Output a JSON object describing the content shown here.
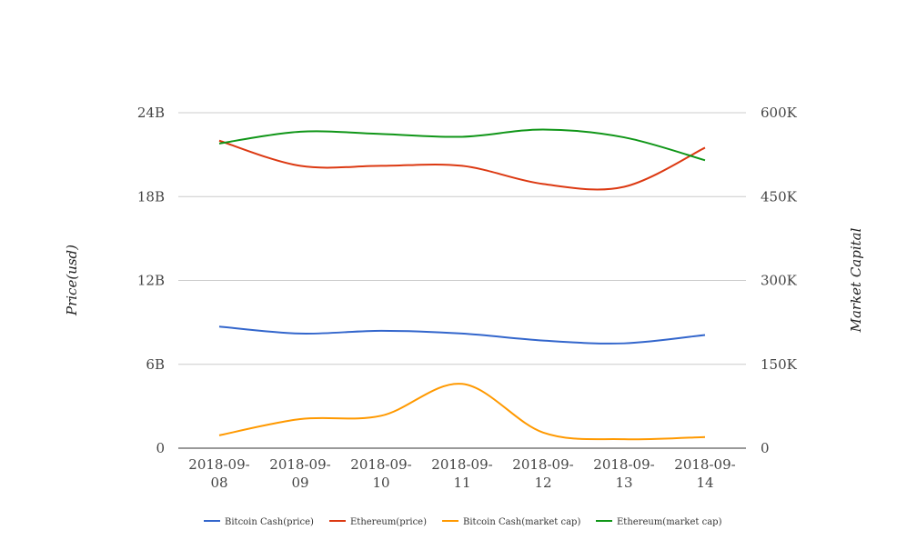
{
  "chart_data": {
    "type": "line",
    "categories": [
      "2018-09-08",
      "2018-09-09",
      "2018-09-10",
      "2018-09-11",
      "2018-09-12",
      "2018-09-13",
      "2018-09-14"
    ],
    "y_left": {
      "label": "Price(usd)",
      "range": [
        0,
        24000000000
      ],
      "ticks": [
        0,
        6000000000,
        12000000000,
        18000000000,
        24000000000
      ],
      "tick_labels": [
        "0",
        "6B",
        "12B",
        "18B",
        "24B"
      ]
    },
    "y_right": {
      "label": "Market Capital",
      "range": [
        0,
        600000
      ],
      "ticks": [
        0,
        150000,
        300000,
        450000,
        600000
      ],
      "tick_labels": [
        "0",
        "150K",
        "300K",
        "450K",
        "600K"
      ]
    },
    "grid": true,
    "legend_position": "bottom",
    "series": [
      {
        "name": "Bitcoin Cash(price)",
        "axis": "left",
        "color": "#3366cc",
        "values": [
          8700000000,
          8200000000,
          8400000000,
          8200000000,
          7700000000,
          7500000000,
          8100000000
        ]
      },
      {
        "name": "Ethereum(price)",
        "axis": "left",
        "color": "#dc3912",
        "values": [
          22000000000,
          20200000000,
          20200000000,
          20200000000,
          18900000000,
          18700000000,
          21500000000
        ]
      },
      {
        "name": "Bitcoin Cash(market cap)",
        "axis": "right",
        "color": "#ff9900",
        "values": [
          23000,
          52000,
          58000,
          115000,
          28000,
          16000,
          20000
        ]
      },
      {
        "name": "Ethereum(market cap)",
        "axis": "right",
        "color": "#109618",
        "values": [
          545000,
          566000,
          562000,
          557000,
          570000,
          556000,
          515000
        ]
      }
    ]
  }
}
